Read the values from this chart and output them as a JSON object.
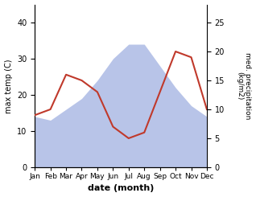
{
  "months": [
    "Jan",
    "Feb",
    "Mar",
    "Apr",
    "May",
    "Jun",
    "Jul",
    "Aug",
    "Sep",
    "Oct",
    "Nov",
    "Dec"
  ],
  "temp": [
    14,
    13,
    16,
    19,
    24,
    30,
    34,
    34,
    28,
    22,
    17,
    14
  ],
  "precip": [
    9,
    10,
    16,
    15,
    13,
    7,
    5,
    6,
    13,
    20,
    19,
    10
  ],
  "temp_color": "#c0392b",
  "precip_fill_color": "#b8c4e8",
  "xlabel": "date (month)",
  "ylabel_left": "max temp (C)",
  "ylabel_right": "med. precipitation\n(kg/m2)",
  "ylim_left": [
    0,
    45
  ],
  "ylim_right": [
    0,
    28.125
  ],
  "yticks_left": [
    0,
    10,
    20,
    30,
    40
  ],
  "yticks_right": [
    0,
    5,
    10,
    15,
    20,
    25
  ],
  "background_color": "#ffffff"
}
